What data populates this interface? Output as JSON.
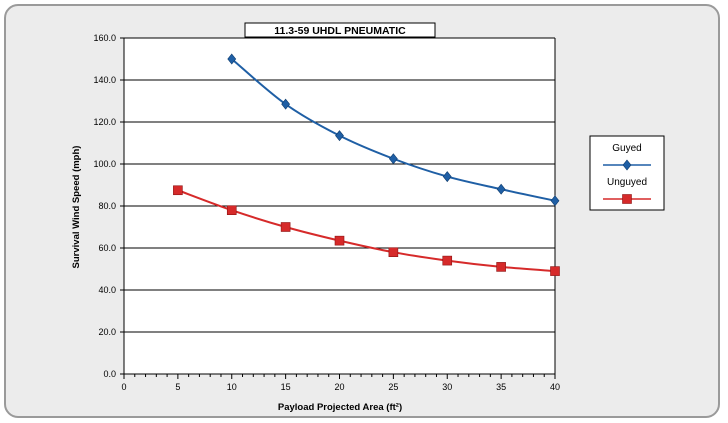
{
  "chart_data": {
    "type": "line",
    "title": "11.3-59 UHDL PNEUMATIC",
    "xlabel": "Payload Projected Area (ft²)",
    "ylabel": "Survival Wind Speed (mph)",
    "xlim": [
      0,
      40
    ],
    "ylim": [
      0,
      160
    ],
    "x_ticks": [
      0,
      5,
      10,
      15,
      20,
      25,
      30,
      35,
      40
    ],
    "y_ticks": [
      0,
      20,
      40,
      60,
      80,
      100,
      120,
      140,
      160
    ],
    "y_tick_labels": [
      "0.0",
      "20.0",
      "40.0",
      "60.0",
      "80.0",
      "100.0",
      "120.0",
      "140.0",
      "160.0"
    ],
    "grid": "horizontal",
    "legend_position": "right",
    "series": [
      {
        "name": "Guyed",
        "color": "#1f5fa5",
        "marker": "diamond",
        "x": [
          10,
          15,
          20,
          25,
          30,
          35,
          40
        ],
        "values": [
          150.0,
          128.5,
          113.5,
          102.5,
          94.0,
          88.0,
          82.5
        ]
      },
      {
        "name": "Unguyed",
        "color": "#d62a2a",
        "marker": "square",
        "x": [
          5,
          10,
          15,
          20,
          25,
          30,
          35,
          40
        ],
        "values": [
          87.5,
          78.0,
          70.0,
          63.5,
          58.0,
          54.0,
          51.0,
          49.0
        ]
      }
    ]
  }
}
